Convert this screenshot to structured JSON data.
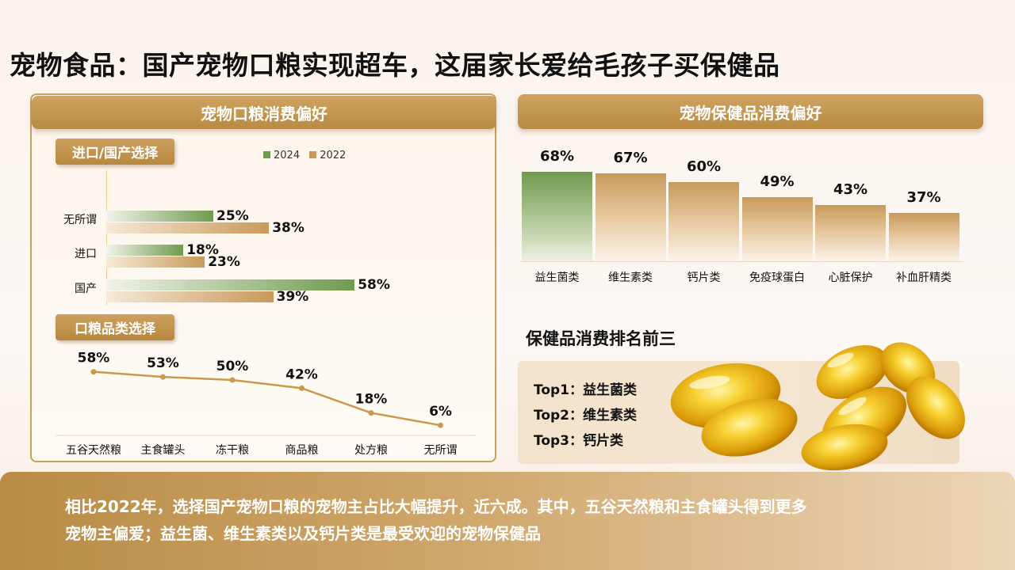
{
  "title": "宠物食品：国产宠物口粮实现超车，这届家长爱给毛孩子买保健品",
  "left_panel": {
    "banner": "宠物口粮消费偏好",
    "section1_tag": "进口/国产选择",
    "section2_tag": "口粮品类选择"
  },
  "right_panel": {
    "banner": "宠物保健品消费偏好",
    "top3_heading": "保健品消费排名前三",
    "top3": [
      "Top1：益生菌类",
      "Top2：维生素类",
      "Top3：钙片类"
    ],
    "capsule_image": "softgel-capsules"
  },
  "summary": {
    "line1": "相比2022年，选择国产宠物口粮的宠物主占比大幅提升，近六成。其中，五谷天然粮和主食罐头得到更多",
    "line2": "宠物主偏爱；益生菌、维生素类以及钙片类是最受欢迎的宠物保健品"
  },
  "colors": {
    "green": "#6f9a4f",
    "gold": "#c9995a",
    "gold_light": "#f3e4d0",
    "line": "#c9994e"
  },
  "chart_data": [
    {
      "type": "bar",
      "orientation": "horizontal",
      "categories": [
        "无所谓",
        "进口",
        "国产"
      ],
      "series": [
        {
          "name": "2024",
          "values": [
            25,
            18,
            58
          ],
          "labels": [
            "25%",
            "18%",
            "58%"
          ]
        },
        {
          "name": "2022",
          "values": [
            38,
            23,
            39
          ],
          "labels": [
            "38%",
            "23%",
            "39%"
          ]
        }
      ],
      "legend": [
        "2024",
        "2022"
      ],
      "legend_position": "top"
    },
    {
      "type": "line",
      "categories": [
        "五谷天然粮",
        "主食罐头",
        "冻干粮",
        "商品粮",
        "处方粮",
        "无所谓"
      ],
      "values": [
        58,
        53,
        50,
        42,
        18,
        6
      ],
      "labels": [
        "58%",
        "53%",
        "50%",
        "42%",
        "18%",
        "6%"
      ]
    },
    {
      "type": "bar",
      "categories": [
        "益生菌类",
        "维生素类",
        "钙片类",
        "免疫球蛋白",
        "心脏保护",
        "补血肝精类"
      ],
      "values": [
        68,
        67,
        60,
        49,
        43,
        37
      ],
      "labels": [
        "68%",
        "67%",
        "60%",
        "49%",
        "43%",
        "37%"
      ],
      "highlight_index": 0
    }
  ]
}
